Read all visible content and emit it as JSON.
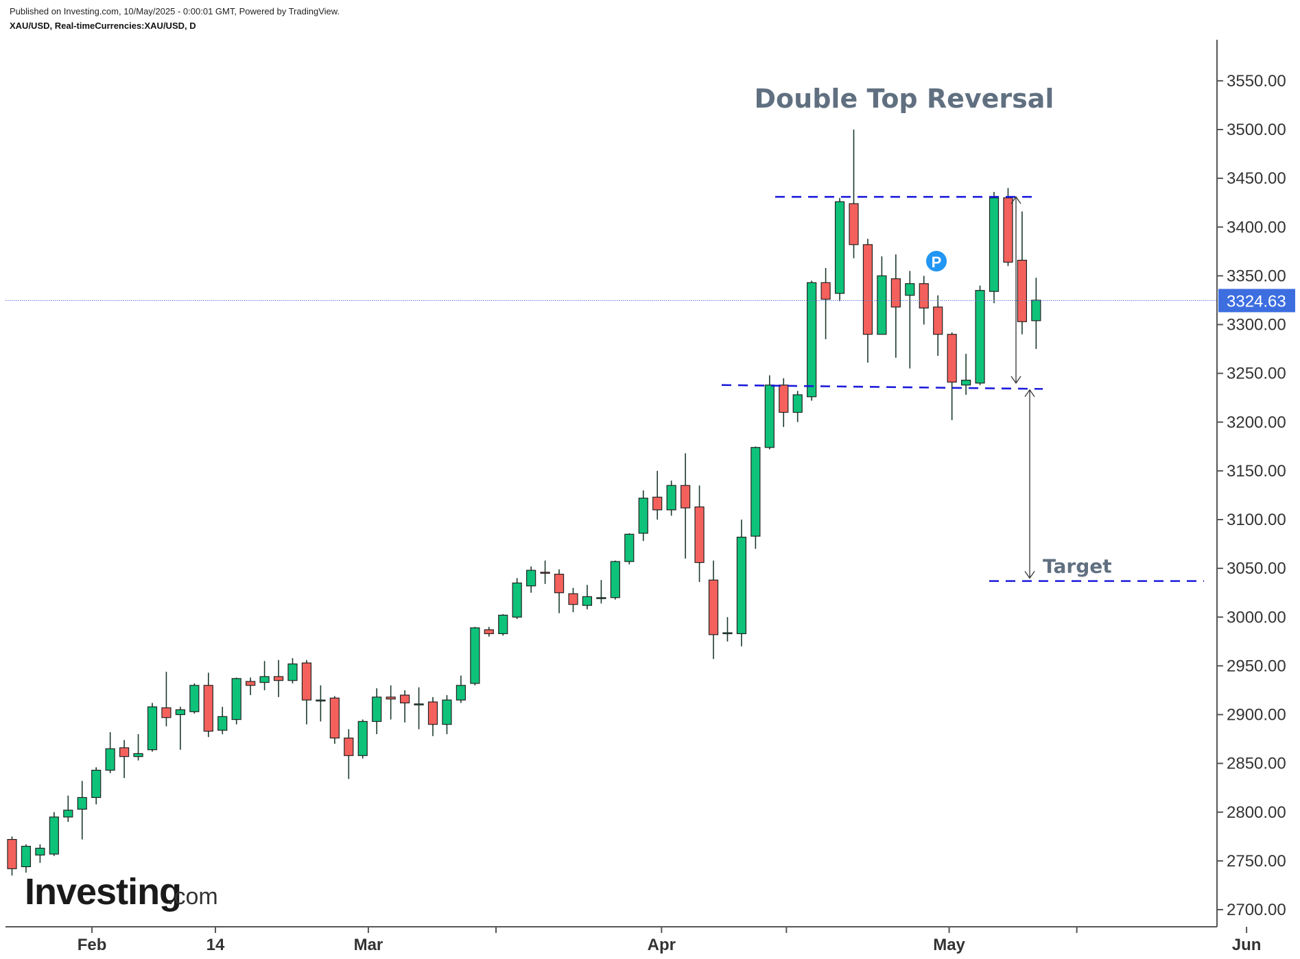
{
  "header": {
    "published": "Published on Investing.com, 10/May/2025 - 0:00:01 GMT, Powered by TradingView.",
    "symbol": "XAU/USD, Real-timeCurrencies:XAU/USD, D"
  },
  "logo": {
    "main": "Investing",
    "suffix": ".com"
  },
  "colors": {
    "up": "#0ec27a",
    "down": "#f4615c",
    "wick": "#1a3a2a",
    "guide": "#1a1adc",
    "price_tag": "#3d6ee0"
  },
  "chart_data": {
    "type": "candlestick",
    "title": "",
    "ylim": [
      2690,
      3600
    ],
    "y_ticks": [
      "2700.00",
      "2750.00",
      "2800.00",
      "2850.00",
      "2900.00",
      "2950.00",
      "3000.00",
      "3050.00",
      "3100.00",
      "3150.00",
      "3200.00",
      "3250.00",
      "3300.00",
      "3350.00",
      "3400.00",
      "3450.00",
      "3500.00",
      "3550.00"
    ],
    "x_labels": [
      {
        "label": "Feb",
        "index": 5.7
      },
      {
        "label": "14",
        "index": 14.5
      },
      {
        "label": "Mar",
        "index": 25.4
      },
      {
        "label": "Apr",
        "index": 46.3
      },
      {
        "label": "May",
        "index": 66.8
      },
      {
        "label": "Jun",
        "index": 88.0
      }
    ],
    "x_minor_ticks": [
      34.5,
      55.2,
      75.9
    ],
    "last_price": "3324.63",
    "candles": [
      [
        2772,
        2775,
        2735,
        2742
      ],
      [
        2744,
        2767,
        2738,
        2765
      ],
      [
        2756,
        2767,
        2748,
        2763
      ],
      [
        2757,
        2800,
        2755,
        2795
      ],
      [
        2795,
        2817,
        2790,
        2802
      ],
      [
        2803,
        2832,
        2772,
        2815
      ],
      [
        2815,
        2846,
        2808,
        2843
      ],
      [
        2843,
        2882,
        2840,
        2865
      ],
      [
        2866,
        2874,
        2835,
        2857
      ],
      [
        2857,
        2880,
        2853,
        2860
      ],
      [
        2864,
        2912,
        2862,
        2908
      ],
      [
        2907,
        2944,
        2888,
        2897
      ],
      [
        2900,
        2908,
        2864,
        2905
      ],
      [
        2903,
        2932,
        2901,
        2930
      ],
      [
        2930,
        2943,
        2877,
        2883
      ],
      [
        2884,
        2908,
        2880,
        2898
      ],
      [
        2895,
        2938,
        2890,
        2937
      ],
      [
        2934,
        2938,
        2920,
        2930
      ],
      [
        2933,
        2955,
        2925,
        2939
      ],
      [
        2939,
        2956,
        2918,
        2935
      ],
      [
        2935,
        2958,
        2932,
        2952
      ],
      [
        2953,
        2956,
        2890,
        2915
      ],
      [
        2915,
        2930,
        2893,
        2915
      ],
      [
        2917,
        2919,
        2870,
        2876
      ],
      [
        2876,
        2885,
        2834,
        2858
      ],
      [
        2858,
        2895,
        2855,
        2893
      ],
      [
        2893,
        2927,
        2880,
        2918
      ],
      [
        2918,
        2930,
        2895,
        2916
      ],
      [
        2920,
        2925,
        2892,
        2912
      ],
      [
        2910,
        2928,
        2885,
        2911
      ],
      [
        2913,
        2918,
        2878,
        2890
      ],
      [
        2890,
        2920,
        2880,
        2915
      ],
      [
        2915,
        2940,
        2912,
        2930
      ],
      [
        2932,
        2990,
        2930,
        2989
      ],
      [
        2987,
        2990,
        2980,
        2983
      ],
      [
        2983,
        3003,
        2981,
        3002
      ],
      [
        3000,
        3040,
        2998,
        3035
      ],
      [
        3032,
        3052,
        3025,
        3048
      ],
      [
        3046,
        3058,
        3034,
        3045
      ],
      [
        3044,
        3049,
        3004,
        3025
      ],
      [
        3024,
        3030,
        3005,
        3013
      ],
      [
        3012,
        3033,
        3008,
        3021
      ],
      [
        3020,
        3038,
        3014,
        3020
      ],
      [
        3020,
        3058,
        3018,
        3057
      ],
      [
        3057,
        3086,
        3054,
        3085
      ],
      [
        3086,
        3130,
        3078,
        3122
      ],
      [
        3123,
        3150,
        3100,
        3110
      ],
      [
        3110,
        3140,
        3104,
        3135
      ],
      [
        3135,
        3168,
        3060,
        3112
      ],
      [
        3113,
        3135,
        3036,
        3056
      ],
      [
        3038,
        3058,
        2957,
        2982
      ],
      [
        2983,
        3000,
        2975,
        2984
      ],
      [
        2983,
        3100,
        2970,
        3082
      ],
      [
        3083,
        3175,
        3070,
        3174
      ],
      [
        3174,
        3248,
        3172,
        3238
      ],
      [
        3238,
        3245,
        3195,
        3210
      ],
      [
        3210,
        3232,
        3200,
        3228
      ],
      [
        3226,
        3345,
        3222,
        3343
      ],
      [
        3343,
        3358,
        3285,
        3326
      ],
      [
        3332,
        3430,
        3324,
        3426
      ],
      [
        3424,
        3500,
        3368,
        3382
      ],
      [
        3382,
        3388,
        3261,
        3290
      ],
      [
        3290,
        3370,
        3290,
        3350
      ],
      [
        3347,
        3372,
        3266,
        3318
      ],
      [
        3330,
        3355,
        3255,
        3342
      ],
      [
        3342,
        3350,
        3300,
        3317
      ],
      [
        3318,
        3330,
        3268,
        3290
      ],
      [
        3290,
        3292,
        3202,
        3241
      ],
      [
        3238,
        3270,
        3228,
        3243
      ],
      [
        3240,
        3340,
        3238,
        3335
      ],
      [
        3334,
        3436,
        3322,
        3430
      ],
      [
        3430,
        3440,
        3360,
        3364
      ],
      [
        3366,
        3416,
        3290,
        3303
      ],
      [
        3304,
        3348,
        3275,
        3325
      ]
    ],
    "annotations": {
      "title_text": "Double Top Reversal",
      "target_text": "Target",
      "marker": "P",
      "resistance_level": 3431,
      "support_level": 3236,
      "target_level": 3037
    }
  }
}
